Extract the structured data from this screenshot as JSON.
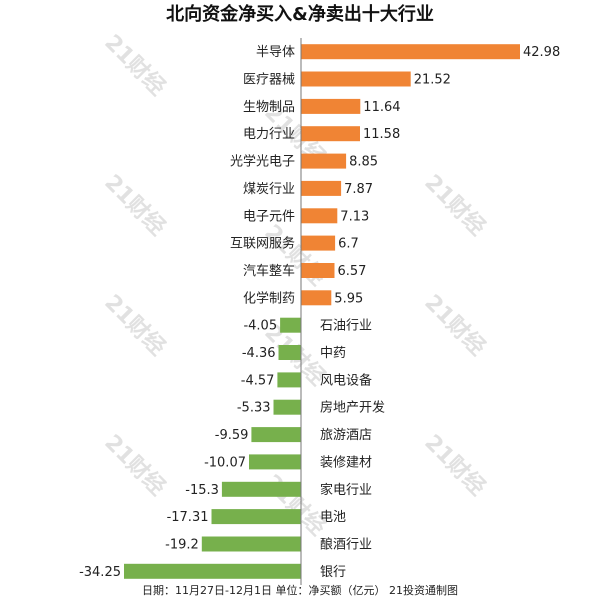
{
  "chart_data": {
    "type": "bar",
    "orientation": "horizontal",
    "title": "北向资金净买入&净卖出十大行业",
    "categories": [
      "半导体",
      "医疗器械",
      "生物制品",
      "电力行业",
      "光学光电子",
      "煤炭行业",
      "电子元件",
      "互联网服务",
      "汽车整车",
      "化学制药",
      "石油行业",
      "中药",
      "风电设备",
      "房地产开发",
      "旅游酒店",
      "装修建材",
      "家电行业",
      "电池",
      "酿酒行业",
      "银行"
    ],
    "values": [
      42.98,
      21.52,
      11.64,
      11.58,
      8.85,
      7.87,
      7.13,
      6.7,
      6.57,
      5.95,
      -4.05,
      -4.36,
      -4.57,
      -5.33,
      -9.59,
      -10.07,
      -15.3,
      -17.31,
      -19.2,
      -34.25
    ],
    "value_labels": [
      "42.98",
      "21.52",
      "11.64",
      "11.58",
      "8.85",
      "7.87",
      "7.13",
      "6.7",
      "6.57",
      "5.95",
      "-4.05",
      "-4.36",
      "-4.57",
      "-5.33",
      "-9.59",
      "-10.07",
      "-15.3",
      "-17.31",
      "-19.2",
      "-34.25"
    ],
    "xlim": [
      -34.25,
      42.98
    ],
    "positive_color": "#f08434",
    "negative_color": "#77b04c",
    "grid": false,
    "footer": "日期：11月27日-12月1日 单位：净买额（亿元） 21投资通制图"
  },
  "watermark": "21财经"
}
